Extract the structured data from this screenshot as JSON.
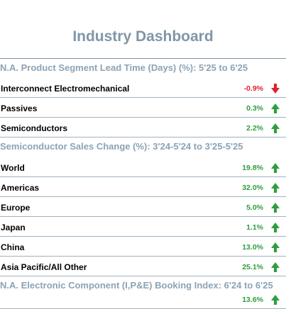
{
  "title": "Industry Dashboard",
  "colors": {
    "positive": "#2e9e3e",
    "negative": "#e0202a",
    "header": "#8ca3b5",
    "title": "#7f96a8"
  },
  "sections": [
    {
      "header": "N.A. Product Segment Lead Time (Days) (%): 5'25 to 6'25",
      "rows": [
        {
          "label": "Interconnect Electromechanical",
          "value": "-0.9%",
          "trend": "down",
          "icon": "arrow-down-icon"
        },
        {
          "label": "Passives",
          "value": "0.3%",
          "trend": "up",
          "icon": "arrow-up-icon"
        },
        {
          "label": "Semiconductors",
          "value": "2.2%",
          "trend": "up",
          "icon": "arrow-up-icon"
        }
      ]
    },
    {
      "header": "Semiconductor Sales Change (%): 3'24-5'24 to 3'25-5'25",
      "rows": [
        {
          "label": "World",
          "value": "19.8%",
          "trend": "up",
          "icon": "arrow-up-icon"
        },
        {
          "label": "Americas",
          "value": "32.0%",
          "trend": "up",
          "icon": "arrow-up-icon"
        },
        {
          "label": "Europe",
          "value": "5.0%",
          "trend": "up",
          "icon": "arrow-up-icon"
        },
        {
          "label": "Japan",
          "value": "1.1%",
          "trend": "up",
          "icon": "arrow-up-icon"
        },
        {
          "label": "China",
          "value": "13.0%",
          "trend": "up",
          "icon": "arrow-up-icon"
        },
        {
          "label": "Asia Pacific/All Other",
          "value": "25.1%",
          "trend": "up",
          "icon": "arrow-up-icon"
        }
      ]
    },
    {
      "header": "N.A. Electronic Component (I,P&E) Booking Index: 6'24 to 6'25",
      "rows": [
        {
          "label": "",
          "value": "13.6%",
          "trend": "up",
          "icon": "arrow-up-icon"
        }
      ]
    }
  ]
}
